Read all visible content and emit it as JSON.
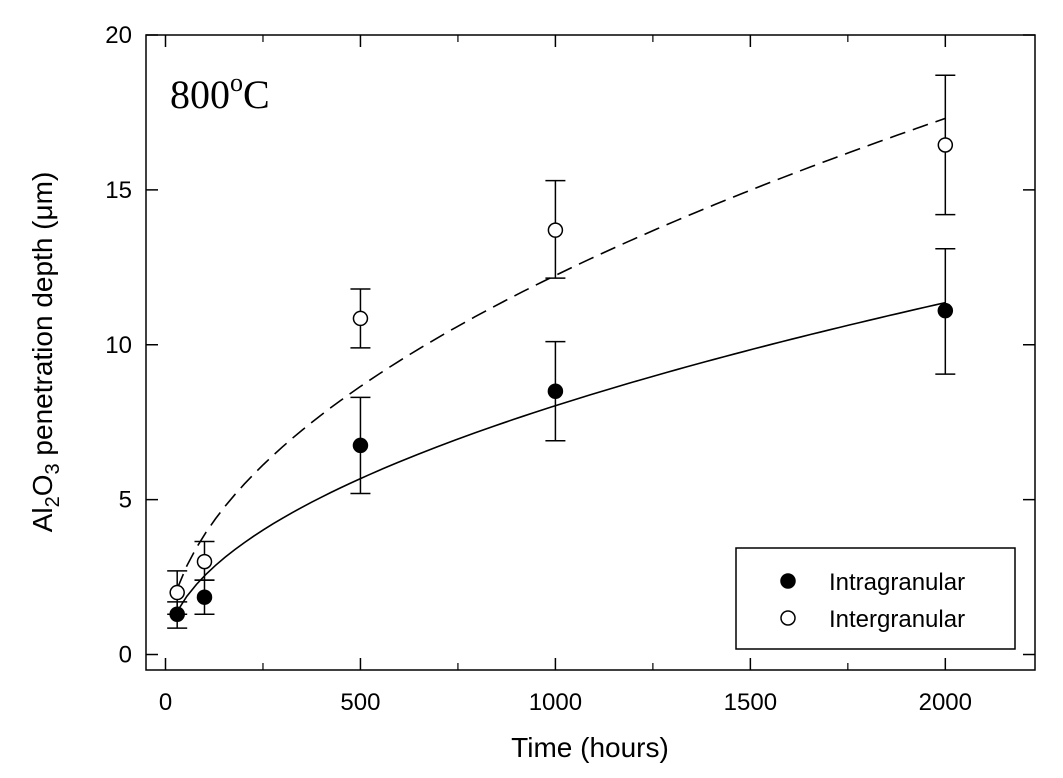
{
  "chart_data": {
    "type": "scatter",
    "annotation": {
      "text": "800",
      "superscript": "o",
      "suffix": "C"
    },
    "xlabel": "Time (hours)",
    "ylabel": {
      "prefix": "Al",
      "sub1": "2",
      "mid": "O",
      "sub2": "3",
      "suffix": " penetration depth (μm)"
    },
    "xlim": [
      -50,
      2230
    ],
    "ylim": [
      -0.5,
      20
    ],
    "x_ticks": [
      0,
      500,
      1000,
      1500,
      2000
    ],
    "x_tick_labels": [
      "0",
      "500",
      "1000",
      "1500",
      "2000"
    ],
    "x_minor_ticks": [
      250,
      750,
      1250,
      1750
    ],
    "y_ticks": [
      0,
      5,
      10,
      15,
      20
    ],
    "y_tick_labels": [
      "0",
      "5",
      "10",
      "15",
      "20"
    ],
    "grid": false,
    "legend_position": "bottom-right",
    "series": [
      {
        "name": "Intragranular",
        "marker": "filled-circle",
        "points": [
          {
            "x": 30,
            "y": 1.3,
            "err_low": 0.85,
            "err_high": 1.7
          },
          {
            "x": 100,
            "y": 1.85,
            "err_low": 1.3,
            "err_high": 2.4
          },
          {
            "x": 500,
            "y": 6.75,
            "err_low": 5.2,
            "err_high": 8.3
          },
          {
            "x": 1000,
            "y": 8.5,
            "err_low": 6.9,
            "err_high": 10.1
          },
          {
            "x": 2000,
            "y": 11.1,
            "err_low": 9.05,
            "err_high": 13.1
          }
        ],
        "fit": {
          "style": "solid",
          "a": 0.254,
          "n": 0.5,
          "x_start": 30,
          "x_end": 2000
        }
      },
      {
        "name": "Intergranular",
        "marker": "open-circle",
        "points": [
          {
            "x": 30,
            "y": 2.0,
            "err_low": 1.3,
            "err_high": 2.7
          },
          {
            "x": 100,
            "y": 3.0,
            "err_low": 2.4,
            "err_high": 3.65
          },
          {
            "x": 500,
            "y": 10.85,
            "err_low": 9.9,
            "err_high": 11.8
          },
          {
            "x": 1000,
            "y": 13.7,
            "err_low": 12.15,
            "err_high": 15.3
          },
          {
            "x": 2000,
            "y": 16.45,
            "err_low": 14.2,
            "err_high": 18.7
          }
        ],
        "fit": {
          "style": "dashed",
          "a": 0.387,
          "n": 0.5,
          "x_start": 30,
          "x_end": 2000
        }
      }
    ]
  }
}
